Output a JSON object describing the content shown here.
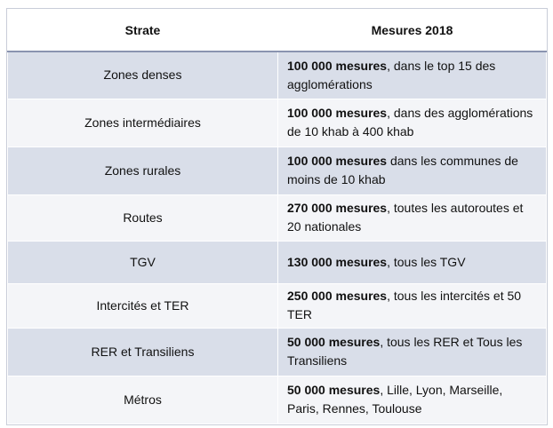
{
  "table": {
    "header": [
      "Strate",
      "Mesures 2018"
    ],
    "rows": [
      {
        "strate": "Zones denses",
        "bold": "100 000 mesures",
        "text": ", dans le top 15 des agglomérations"
      },
      {
        "strate": "Zones intermédiaires",
        "bold": "100 000 mesures",
        "text": ", dans des agglomérations de 10 khab à 400 khab"
      },
      {
        "strate": "Zones rurales",
        "bold": "100 000 mesures",
        "text": " dans les communes de moins de 10 khab"
      },
      {
        "strate": "Routes",
        "bold": "270 000 mesures",
        "text": ", toutes les autoroutes et 20 nationales"
      },
      {
        "strate": "TGV",
        "bold": "130 000 mesures",
        "text": ", tous les TGV"
      },
      {
        "strate": "Intercités et TER",
        "bold": "250 000 mesures",
        "text": ", tous les intercités et 50 TER"
      },
      {
        "strate": "RER et Transiliens",
        "bold": "50 000 mesures",
        "text": ", tous les RER et Tous les Transiliens"
      },
      {
        "strate": "Métros",
        "bold": "50 000 mesures",
        "text": ", Lille, Lyon, Marseille, Paris, Rennes, Toulouse"
      }
    ]
  }
}
